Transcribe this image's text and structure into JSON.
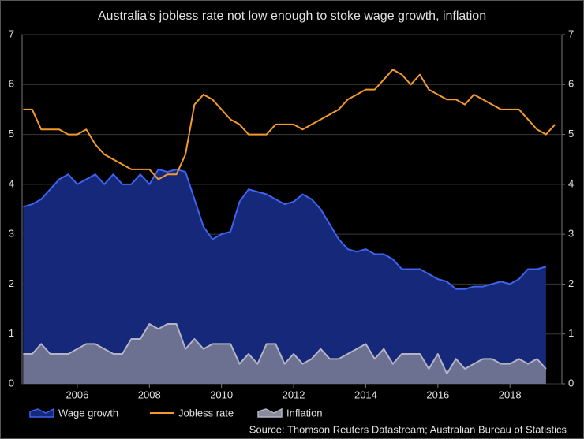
{
  "chart_data": {
    "type": "line",
    "title": "Australia's jobless rate not low enough to stoke wage growth, inflation",
    "source": "Source: Thomson Reuters Datastream; Australian Bureau of Statistics",
    "x": [
      2004.5,
      2004.75,
      2005,
      2005.25,
      2005.5,
      2005.75,
      2006,
      2006.25,
      2006.5,
      2006.75,
      2007,
      2007.25,
      2007.5,
      2007.75,
      2008,
      2008.25,
      2008.5,
      2008.75,
      2009,
      2009.25,
      2009.5,
      2009.75,
      2010,
      2010.25,
      2010.5,
      2010.75,
      2011,
      2011.25,
      2011.5,
      2011.75,
      2012,
      2012.25,
      2012.5,
      2012.75,
      2013,
      2013.25,
      2013.5,
      2013.75,
      2014,
      2014.25,
      2014.5,
      2014.75,
      2015,
      2015.25,
      2015.5,
      2015.75,
      2016,
      2016.25,
      2016.5,
      2016.75,
      2017,
      2017.25,
      2017.5,
      2017.75,
      2018,
      2018.25,
      2018.5,
      2018.75,
      2019,
      2019.25
    ],
    "series": [
      {
        "name": "Wage growth",
        "color": "#3d63f0",
        "fill": "#15287a",
        "area": true,
        "values": [
          3.55,
          3.6,
          3.7,
          3.9,
          4.1,
          4.2,
          4.0,
          4.1,
          4.2,
          4.0,
          4.2,
          4.0,
          4.0,
          4.2,
          4.0,
          4.3,
          4.25,
          4.3,
          4.25,
          3.7,
          3.15,
          2.9,
          3.0,
          3.05,
          3.65,
          3.9,
          3.85,
          3.8,
          3.7,
          3.6,
          3.65,
          3.8,
          3.7,
          3.5,
          3.2,
          2.9,
          2.7,
          2.65,
          2.7,
          2.6,
          2.6,
          2.5,
          2.3,
          2.3,
          2.3,
          2.2,
          2.1,
          2.05,
          1.9,
          1.9,
          1.95,
          1.95,
          2.0,
          2.05,
          2.0,
          2.1,
          2.3,
          2.3,
          2.35,
          null
        ]
      },
      {
        "name": "Jobless rate",
        "color": "#f39a2c",
        "area": false,
        "values": [
          5.5,
          5.5,
          5.1,
          5.1,
          5.1,
          5.0,
          5.0,
          5.1,
          4.8,
          4.6,
          4.5,
          4.4,
          4.3,
          4.3,
          4.3,
          4.1,
          4.2,
          4.2,
          4.6,
          5.6,
          5.8,
          5.7,
          5.5,
          5.3,
          5.2,
          5.0,
          5.0,
          5.0,
          5.2,
          5.2,
          5.2,
          5.1,
          5.2,
          5.3,
          5.4,
          5.5,
          5.7,
          5.8,
          5.9,
          5.9,
          6.1,
          6.3,
          6.2,
          6.0,
          6.2,
          5.9,
          5.8,
          5.7,
          5.7,
          5.6,
          5.8,
          5.7,
          5.6,
          5.5,
          5.5,
          5.5,
          5.3,
          5.1,
          5.0,
          5.2
        ]
      },
      {
        "name": "Inflation",
        "color": "#b4b4c4",
        "fill": "#8a8a9a",
        "area": true,
        "values": [
          0.6,
          0.6,
          0.8,
          0.6,
          0.6,
          0.6,
          0.7,
          0.8,
          0.8,
          0.7,
          0.6,
          0.6,
          0.9,
          0.9,
          1.2,
          1.1,
          1.2,
          1.2,
          0.7,
          0.9,
          0.7,
          0.8,
          0.8,
          0.8,
          0.4,
          0.6,
          0.4,
          0.8,
          0.8,
          0.4,
          0.6,
          0.4,
          0.5,
          0.7,
          0.5,
          0.5,
          0.6,
          0.7,
          0.8,
          0.5,
          0.7,
          0.4,
          0.6,
          0.6,
          0.6,
          0.3,
          0.6,
          0.2,
          0.5,
          0.3,
          0.4,
          0.5,
          0.5,
          0.4,
          0.4,
          0.5,
          0.4,
          0.5,
          0.3,
          null
        ]
      }
    ],
    "xlim": [
      2004.47,
      2019.44
    ],
    "xticks": [
      2006,
      2008,
      2010,
      2012,
      2014,
      2016,
      2018
    ],
    "ylim": [
      0,
      7
    ],
    "yticks": [
      0,
      1,
      2,
      3,
      4,
      5,
      6,
      7
    ],
    "y2lim": [
      0,
      7
    ],
    "y2ticks": [
      0,
      1,
      2,
      3,
      4,
      5,
      6,
      7
    ],
    "grid": true
  }
}
